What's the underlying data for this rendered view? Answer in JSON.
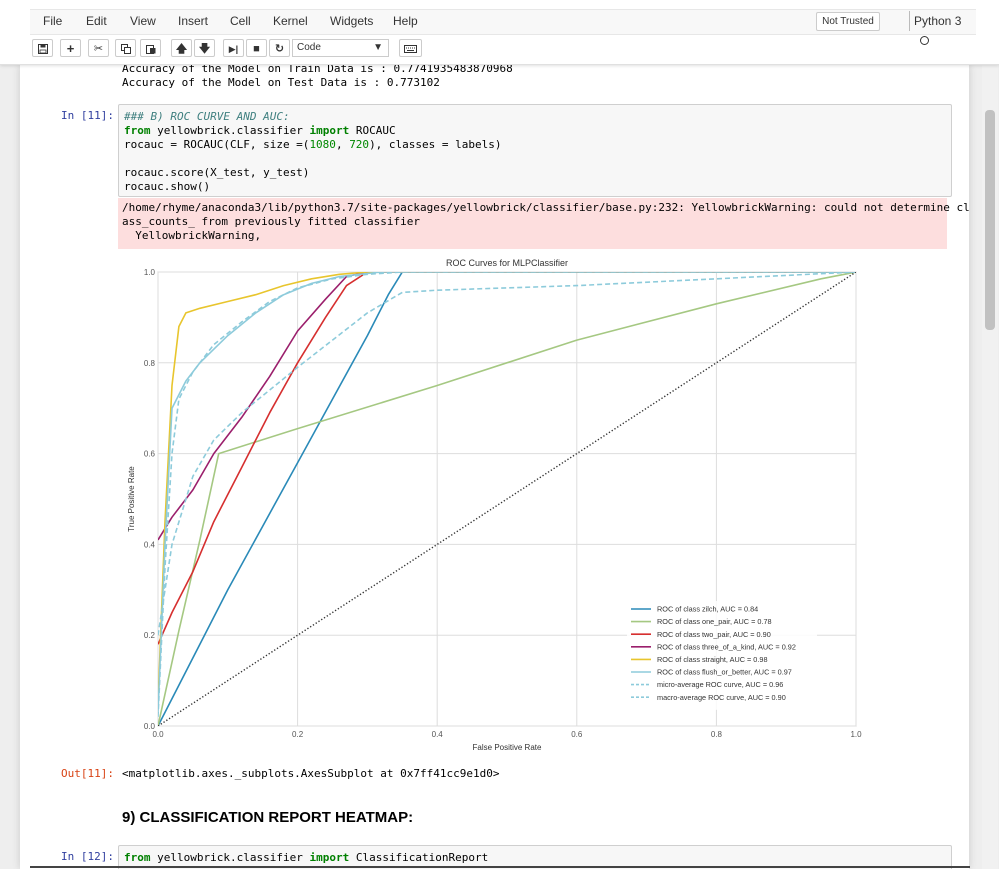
{
  "menu": [
    "File",
    "Edit",
    "View",
    "Insert",
    "Cell",
    "Kernel",
    "Widgets",
    "Help"
  ],
  "trust_badge": "Not Trusted",
  "kernel": "Python 3",
  "toolbar": {
    "icons": [
      "save-icon",
      "plus-icon",
      "scissors-icon",
      "copy-icon",
      "paste-icon",
      "arrow-up-icon",
      "arrow-down-icon",
      "run-icon",
      "stop-icon",
      "restart-icon",
      "keyboard-icon"
    ],
    "cell_type": "Code"
  },
  "prev_output": [
    "Accuracy of the Model on Train Data is : 0.7741935483870968",
    "Accuracy of the Model on Test Data is : 0.773102"
  ],
  "cell11": {
    "prompt_in": "In [11]:",
    "code": [
      [
        {
          "t": "### B) ROC CURVE AND AUC:",
          "c": "comment"
        }
      ],
      [
        {
          "t": "from",
          "c": "kw"
        },
        {
          "t": " yellowbrick.classifier "
        },
        {
          "t": "import",
          "c": "kw"
        },
        {
          "t": " ROCAUC"
        }
      ],
      [
        {
          "t": "rocauc = ROCAUC(CLF, size =("
        },
        {
          "t": "1080",
          "c": "num"
        },
        {
          "t": ", "
        },
        {
          "t": "720",
          "c": "num"
        },
        {
          "t": "), classes = labels)"
        }
      ],
      [],
      [
        {
          "t": "rocauc.score(X_test, y_test)"
        }
      ],
      [
        {
          "t": "rocauc.show()"
        }
      ]
    ],
    "stderr": [
      "/home/rhyme/anaconda3/lib/python3.7/site-packages/yellowbrick/classifier/base.py:232: YellowbrickWarning: could not determine cl",
      "ass_counts_ from previously fitted classifier",
      "  YellowbrickWarning,"
    ],
    "prompt_out": "Out[11]:",
    "out_text": "<matplotlib.axes._subplots.AxesSubplot at 0x7ff41cc9e1d0>"
  },
  "heading": "9) CLASSIFICATION REPORT HEATMAP:",
  "cell12": {
    "prompt_in": "In [12]:",
    "code": [
      [
        {
          "t": "from",
          "c": "kw"
        },
        {
          "t": " yellowbrick.classifier "
        },
        {
          "t": "import",
          "c": "kw"
        },
        {
          "t": " ClassificationReport"
        }
      ]
    ]
  },
  "chart_data": {
    "type": "line",
    "title": "ROC Curves for MLPClassifier",
    "xlabel": "False Positive Rate",
    "ylabel": "True Positive Rate",
    "xlim": [
      0,
      1
    ],
    "ylim": [
      0,
      1
    ],
    "xticks": [
      "0.0",
      "0.2",
      "0.4",
      "0.6",
      "0.8",
      "1.0"
    ],
    "yticks": [
      "0.0",
      "0.2",
      "0.4",
      "0.6",
      "0.8",
      "1.0"
    ],
    "grid": true,
    "legend_position": "lower-right",
    "series": [
      {
        "name": "ROC of class zilch, AUC = 0.84",
        "color": "#2a8ab8",
        "dash": "solid",
        "x": [
          0,
          0.05,
          0.1,
          0.15,
          0.2,
          0.25,
          0.3,
          0.33,
          0.35,
          1.0
        ],
        "y": [
          0,
          0.15,
          0.3,
          0.44,
          0.58,
          0.72,
          0.86,
          0.95,
          1.0,
          1.0
        ]
      },
      {
        "name": "ROC of class one_pair, AUC = 0.78",
        "color": "#a5c882",
        "dash": "solid",
        "x": [
          0,
          0.03,
          0.06,
          0.087,
          0.2,
          0.4,
          0.6,
          0.8,
          0.95,
          1.0
        ],
        "y": [
          0,
          0.21,
          0.41,
          0.6,
          0.655,
          0.75,
          0.85,
          0.93,
          0.985,
          1.0
        ]
      },
      {
        "name": "ROC of class two_pair, AUC = 0.90",
        "color": "#d62f2f",
        "dash": "solid",
        "x": [
          0,
          0.02,
          0.05,
          0.08,
          0.12,
          0.16,
          0.2,
          0.24,
          0.27,
          0.3,
          1.0
        ],
        "y": [
          0.18,
          0.25,
          0.34,
          0.45,
          0.57,
          0.69,
          0.8,
          0.9,
          0.97,
          1.0,
          1.0
        ]
      },
      {
        "name": "ROC of class three_of_a_kind, AUC = 0.92",
        "color": "#9b1f6c",
        "dash": "solid",
        "x": [
          0,
          0.02,
          0.05,
          0.08,
          0.12,
          0.16,
          0.2,
          0.24,
          0.27,
          0.3,
          1.0
        ],
        "y": [
          0.41,
          0.46,
          0.52,
          0.6,
          0.68,
          0.77,
          0.87,
          0.94,
          0.99,
          1.0,
          1.0
        ]
      },
      {
        "name": "ROC of class straight, AUC = 0.98",
        "color": "#e8c52d",
        "dash": "solid",
        "x": [
          0,
          0.01,
          0.02,
          0.03,
          0.04,
          0.06,
          0.1,
          0.14,
          0.18,
          0.22,
          0.26,
          0.3,
          1.0
        ],
        "y": [
          0.05,
          0.45,
          0.75,
          0.88,
          0.91,
          0.92,
          0.935,
          0.95,
          0.97,
          0.985,
          0.995,
          1.0,
          1.0
        ]
      },
      {
        "name": "ROC of class flush_or_better, AUC = 0.97",
        "color": "#8dcbdb",
        "dash": "solid",
        "x": [
          0,
          0.01,
          0.02,
          0.04,
          0.06,
          0.08,
          0.1,
          0.14,
          0.18,
          0.22,
          0.26,
          0.32,
          1.0
        ],
        "y": [
          0.03,
          0.4,
          0.7,
          0.76,
          0.8,
          0.83,
          0.86,
          0.91,
          0.95,
          0.975,
          0.99,
          1.0,
          1.0
        ]
      },
      {
        "name": "micro-average ROC curve, AUC = 0.96",
        "color": "#8dcbdb",
        "dash": "dashed",
        "x": [
          0,
          0.01,
          0.02,
          0.03,
          0.05,
          0.08,
          0.12,
          0.16,
          0.2,
          0.25,
          0.3,
          0.35,
          1.0
        ],
        "y": [
          0.02,
          0.35,
          0.6,
          0.72,
          0.78,
          0.84,
          0.89,
          0.935,
          0.965,
          0.985,
          0.995,
          1.0,
          1.0
        ]
      },
      {
        "name": "macro-average ROC curve, AUC = 0.90",
        "color": "#8dcbdb",
        "dash": "dashed",
        "x": [
          0,
          0.02,
          0.05,
          0.08,
          0.12,
          0.16,
          0.2,
          0.25,
          0.3,
          0.35,
          0.4,
          0.6,
          0.8,
          1.0
        ],
        "y": [
          0.2,
          0.4,
          0.55,
          0.63,
          0.69,
          0.74,
          0.79,
          0.85,
          0.91,
          0.955,
          0.96,
          0.97,
          0.985,
          1.0
        ]
      },
      {
        "name": "",
        "color": "#333333",
        "dash": "dotted",
        "x": [
          0,
          1
        ],
        "y": [
          0,
          1
        ]
      }
    ]
  }
}
